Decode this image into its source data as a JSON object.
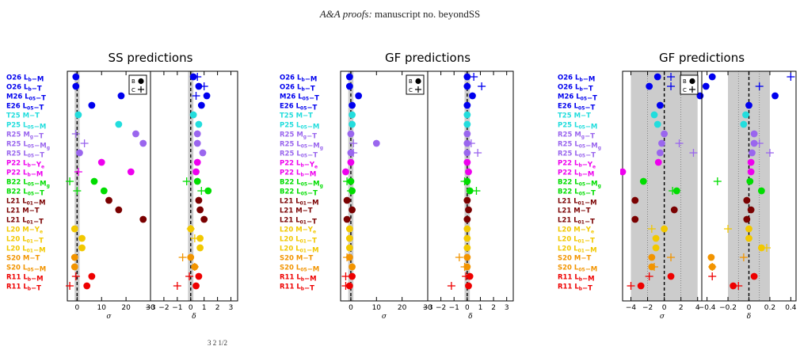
{
  "header": {
    "italic": "A&A proofs:",
    "rest": " manuscript no. beyondSS"
  },
  "footer_text": "3     2  1/2",
  "panel_titles": [
    "SS predictions",
    "GF predictions",
    "GF predictions"
  ],
  "legend": {
    "b": "B",
    "c": "C"
  },
  "colors": {
    "O26": "#0000ee",
    "M26": "#0000ee",
    "E26": "#0000ee",
    "T25": "#22dddd",
    "P25": "#22dddd",
    "R25": "#9a66ee",
    "P22": "#ee00ee",
    "B22": "#00dd00",
    "L21": "#7a0000",
    "L20": "#f2c800",
    "S20": "#f29400",
    "R11": "#ee0000"
  },
  "chart_data": {
    "type": "scatter",
    "rows": [
      {
        "pre": "O26 L",
        "sub": "b",
        "post": "−M",
        "grp": "O26"
      },
      {
        "pre": "O26 L",
        "sub": "b",
        "post": "−T",
        "grp": "O26"
      },
      {
        "pre": "M26 L",
        "sub": "05",
        "post": "−T",
        "grp": "M26"
      },
      {
        "pre": "E26 L",
        "sub": "05",
        "post": "−T",
        "grp": "E26"
      },
      {
        "pre": "T25 M−T",
        "sub": "",
        "post": "",
        "grp": "T25"
      },
      {
        "pre": "P25 L",
        "sub": "05",
        "post": "−M",
        "grp": "P25"
      },
      {
        "pre": "R25 M",
        "sub": "g",
        "post": "−T",
        "grp": "R25"
      },
      {
        "pre": "R25 L",
        "sub": "05",
        "post": "−M",
        "sub2": "g",
        "grp": "R25"
      },
      {
        "pre": "R25 L",
        "sub": "05",
        "post": "−T",
        "grp": "R25"
      },
      {
        "pre": "P22 L",
        "sub": "b",
        "post": "−Y",
        "sub2": "e",
        "grp": "P22"
      },
      {
        "pre": "P22 L",
        "sub": "b",
        "post": "−M",
        "grp": "P22"
      },
      {
        "pre": "B22 L",
        "sub": "05",
        "post": "−M",
        "sub2": "g",
        "grp": "B22"
      },
      {
        "pre": "B22 L",
        "sub": "05",
        "post": "−T",
        "grp": "B22"
      },
      {
        "pre": "L21 L",
        "sub": "01",
        "post": "−M",
        "grp": "L21"
      },
      {
        "pre": "L21 M−T",
        "sub": "",
        "post": "",
        "grp": "L21"
      },
      {
        "pre": "L21 L",
        "sub": "01",
        "post": "−T",
        "grp": "L21"
      },
      {
        "pre": "L20 M−Y",
        "sub": "e",
        "post": "",
        "grp": "L20"
      },
      {
        "pre": "L20 L",
        "sub": "01",
        "post": "−T",
        "grp": "L20"
      },
      {
        "pre": "L20 L",
        "sub": "01",
        "post": "−M",
        "grp": "L20"
      },
      {
        "pre": "S20 M−T",
        "sub": "",
        "post": "",
        "grp": "S20"
      },
      {
        "pre": "S20 L",
        "sub": "05",
        "post": "−M",
        "grp": "S20"
      },
      {
        "pre": "R11 L",
        "sub": "b",
        "post": "−M",
        "grp": "R11"
      },
      {
        "pre": "R11 L",
        "sub": "b",
        "post": "−T",
        "grp": "R11"
      }
    ],
    "groups": [
      {
        "title": "SS predictions",
        "sigma": {
          "xlim": [
            -4,
            30
          ],
          "xlabel": "σ",
          "ticks": [
            0,
            10,
            20,
            30
          ],
          "tick_labels": [
            "0",
            "10",
            "20",
            "30"
          ],
          "band": [
            -1,
            1
          ],
          "b": [
            -0.5,
            -0.5,
            18,
            6,
            0.5,
            17,
            24,
            27,
            1,
            10,
            22,
            7,
            11,
            13,
            17,
            27,
            -1,
            2,
            2,
            -1,
            -1,
            6,
            4
          ],
          "c": [
            null,
            null,
            null,
            null,
            null,
            null,
            -0.5,
            3,
            null,
            null,
            0.5,
            -3,
            0,
            null,
            null,
            null,
            null,
            null,
            null,
            null,
            null,
            -0.5,
            -3
          ]
        },
        "delta": {
          "xlim": [
            -3,
            3.5
          ],
          "xlabel": "δ",
          "ticks": [
            -3,
            -2,
            -1,
            0,
            1,
            2,
            3
          ],
          "tick_labels": [
            "−3",
            "−2",
            "−1",
            "0",
            "1",
            "2",
            "3"
          ],
          "band": [
            -0.2,
            0.2
          ],
          "b": [
            0.2,
            0.6,
            1.2,
            0.8,
            0.2,
            0.6,
            0.5,
            0.5,
            0.9,
            0.5,
            0.4,
            0.5,
            1.3,
            0.6,
            0.7,
            1,
            0,
            0.7,
            0.7,
            0,
            0.3,
            0.6,
            0.4
          ],
          "c": [
            0.5,
            1,
            0.4,
            null,
            null,
            null,
            null,
            null,
            null,
            null,
            null,
            -0.3,
            0.8,
            null,
            null,
            null,
            0,
            0.3,
            null,
            -0.6,
            0.3,
            -0.1,
            -1
          ]
        }
      },
      {
        "title": "GF predictions",
        "sigma": {
          "xlim": [
            -4,
            30
          ],
          "xlabel": "σ",
          "ticks": [
            0,
            10,
            20,
            30
          ],
          "tick_labels": [
            "0",
            "10",
            "20",
            "30"
          ],
          "band": [
            -1,
            1
          ],
          "b": [
            -0.5,
            -0.5,
            3,
            0.5,
            0.5,
            0.5,
            0,
            10,
            0,
            0,
            -2,
            0,
            0.5,
            -1.5,
            0.5,
            -1.5,
            -0.5,
            -0.5,
            -0.5,
            -0.5,
            0.5,
            0.5,
            -0.5
          ],
          "c": [
            null,
            null,
            null,
            null,
            null,
            null,
            null,
            1,
            1,
            null,
            null,
            -1.5,
            0,
            null,
            null,
            null,
            null,
            null,
            null,
            -1.5,
            null,
            -2,
            -2
          ]
        },
        "delta": {
          "xlim": [
            -3,
            3.5
          ],
          "xlabel": "δ",
          "ticks": [
            -3,
            -2,
            -1,
            0,
            1,
            2,
            3
          ],
          "tick_labels": [
            "−3",
            "−2",
            "−1",
            "0",
            "1",
            "2",
            "3"
          ],
          "band": [
            -0.2,
            0.2
          ],
          "b": [
            0,
            0,
            0.4,
            0,
            0,
            0,
            0,
            0,
            0,
            0,
            0.1,
            0,
            0.2,
            0,
            0.1,
            0,
            0,
            0,
            0,
            0,
            0,
            0.2,
            0.1
          ],
          "c": [
            0.5,
            1.1,
            null,
            null,
            null,
            null,
            null,
            0.3,
            0.8,
            null,
            null,
            -0.2,
            0.7,
            null,
            null,
            null,
            null,
            null,
            null,
            -0.6,
            -0.2,
            -0.1,
            -1.2
          ]
        }
      },
      {
        "title": "GF predictions",
        "sigma": {
          "xlim": [
            -5,
            4.5
          ],
          "xlabel": "σ",
          "ticks": [
            -4,
            -2,
            0,
            2,
            4
          ],
          "tick_labels": [
            "−4",
            "−2",
            "0",
            "2",
            "4"
          ],
          "band": [
            -4,
            4
          ],
          "b": [
            -0.8,
            -1.8,
            4.3,
            -0.5,
            -1.2,
            -0.8,
            0,
            -0.3,
            -0.5,
            -0.7,
            -5,
            -2.5,
            1.5,
            -3.5,
            1.2,
            -3.5,
            0,
            -1,
            -1,
            -1.5,
            -1.5,
            0.8,
            -2.8
          ],
          "c": [
            0.8,
            0.8,
            null,
            null,
            null,
            null,
            null,
            1.8,
            3.5,
            null,
            null,
            null,
            1,
            null,
            null,
            null,
            -1.5,
            null,
            null,
            0.8,
            -1.2,
            -1.8,
            -4
          ]
        },
        "delta": {
          "xlim": [
            -0.45,
            0.45
          ],
          "xlabel": "δ",
          "ticks": [
            -0.4,
            -0.2,
            0,
            0.2,
            0.4
          ],
          "tick_labels": [
            "−0.4",
            "−0.2",
            "0",
            "0.2",
            "0.4"
          ],
          "band": [
            -0.2,
            0.2
          ],
          "b": [
            -0.35,
            -0.41,
            0.25,
            0,
            -0.03,
            -0.05,
            0.05,
            0.05,
            0.03,
            0.02,
            0.02,
            0.01,
            0.12,
            -0.02,
            0.02,
            -0.02,
            0,
            0,
            0.12,
            -0.36,
            -0.35,
            0.05,
            -0.15
          ],
          "c": [
            0.4,
            0.1,
            null,
            null,
            null,
            null,
            null,
            0.1,
            0.2,
            null,
            null,
            -0.3,
            null,
            null,
            null,
            null,
            -0.2,
            null,
            0.17,
            -0.05,
            -0.35,
            -0.35,
            -0.1
          ]
        }
      }
    ]
  }
}
